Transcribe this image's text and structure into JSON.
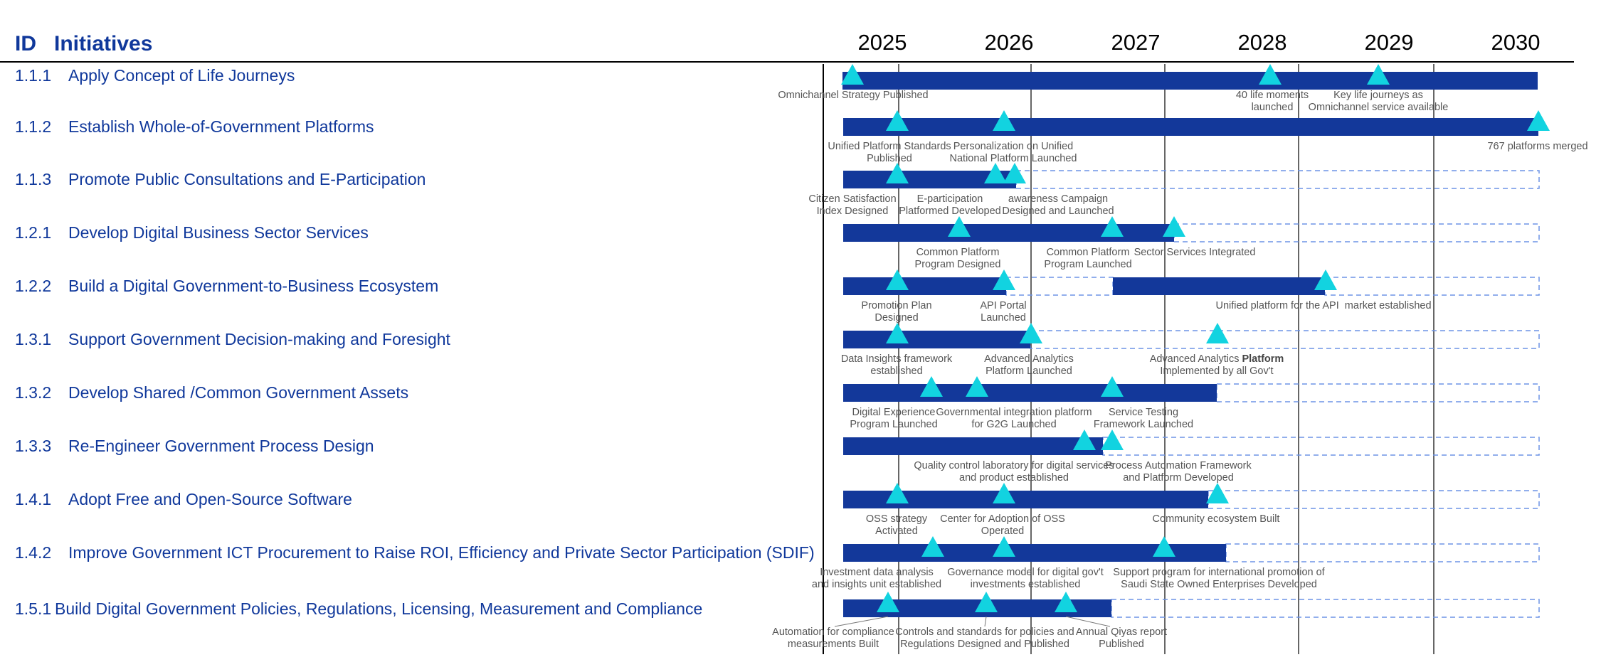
{
  "header": {
    "id_label": "ID",
    "initiatives_label": "Initiatives"
  },
  "years": [
    "2025",
    "2026",
    "2027",
    "2028",
    "2029",
    "2030"
  ],
  "colors": {
    "bar": "#13389a",
    "milestone": "#12d3e0",
    "dashed": "#6d93e6",
    "text": "#10389b",
    "grid": "#333333"
  },
  "rows": [
    {
      "id": "1.1.1",
      "name": "Apply Concept of Life Journeys",
      "milestones": [
        {
          "label": "Omnichannel Strategy Published"
        },
        {
          "label": "40 life moments\nlaunched"
        },
        {
          "label": "Key life journeys as\nOmnichannel service available"
        }
      ]
    },
    {
      "id": "1.1.2",
      "name": "Establish Whole-of-Government Platforms",
      "milestones": [
        {
          "label": "Unified Platform Standards\nPublished"
        },
        {
          "label": "Personalization on Unified\nNational Platform Launched"
        },
        {
          "label": "767 platforms merged"
        }
      ]
    },
    {
      "id": "1.1.3",
      "name": "Promote Public Consultations and E-Participation",
      "milestones": [
        {
          "label": "Citizen Satisfaction\nIndex Designed"
        },
        {
          "label": "E-participation\nPlatformed Developed"
        },
        {
          "label": "awareness Campaign\nDesigned and Launched"
        }
      ]
    },
    {
      "id": "1.2.1",
      "name": "Develop Digital Business Sector Services",
      "milestones": [
        {
          "label": "Common Platform\nProgram Designed"
        },
        {
          "label": "Common Platform\nProgram Launched"
        },
        {
          "label": "Sector Services Integrated"
        }
      ]
    },
    {
      "id": "1.2.2",
      "name": "Build a Digital Government-to-Business Ecosystem",
      "milestones": [
        {
          "label": "Promotion Plan\nDesigned"
        },
        {
          "label": "API Portal\nLaunched"
        },
        {
          "label": "Unified platform for the API  market established"
        }
      ]
    },
    {
      "id": "1.3.1",
      "name": "Support Government Decision-making and Foresight",
      "milestones": [
        {
          "label": "Data Insights framework\nestablished"
        },
        {
          "label": "Advanced Analytics\nPlatform Launched"
        },
        {
          "label": "Advanced Analytics Platform\nImplemented by all Gov't"
        }
      ]
    },
    {
      "id": "1.3.2",
      "name": "Develop Shared /Common Government Assets",
      "milestones": [
        {
          "label": "Digital Experience\nProgram Launched"
        },
        {
          "label": "Governmental integration platform\nfor G2G Launched"
        },
        {
          "label": "Service Testing\nFramework Launched"
        }
      ]
    },
    {
      "id": "1.3.3",
      "name": "Re-Engineer Government Process Design",
      "milestones": [
        {
          "label": "Quality control laboratory for digital services\nand product established"
        },
        {
          "label": "Process Automation Framework\nand Platform Developed"
        }
      ]
    },
    {
      "id": "1.4.1",
      "name": "Adopt Free and Open-Source Software",
      "milestones": [
        {
          "label": "OSS strategy\nActivated"
        },
        {
          "label": "Center for Adoption of OSS\nOperated"
        },
        {
          "label": "Community ecosystem Built"
        }
      ]
    },
    {
      "id": "1.4.2",
      "name": "Improve Government ICT Procurement to Raise ROI, Efficiency and Private Sector Participation (SDIF)",
      "milestones": [
        {
          "label": "Investment data analysis\nand insights unit established"
        },
        {
          "label": "Governance model for digital gov't\ninvestments established"
        },
        {
          "label": "Support program for international promotion of\nSaudi State Owned Enterprises Developed"
        }
      ]
    },
    {
      "id": "1.5.1",
      "name": "Build Digital Government Policies, Regulations, Licensing, Measurement and Compliance",
      "milestones": [
        {
          "label": "Automation for compliance\nmeasurements Built"
        },
        {
          "label": "Controls and standards for policies and\nRegulations Designed and Published"
        },
        {
          "label": "Annual Qiyas report\nPublished"
        }
      ]
    }
  ]
}
